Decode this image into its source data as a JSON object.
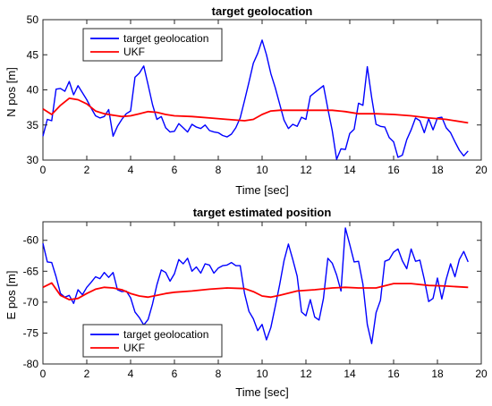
{
  "chart_data": [
    {
      "type": "line",
      "title": "target geolocation",
      "xlabel": "Time [sec]",
      "ylabel": "N pos [m]",
      "xlim": [
        0,
        20
      ],
      "ylim": [
        30,
        50
      ],
      "xticks": [
        "0",
        "2",
        "4",
        "6",
        "8",
        "10",
        "12",
        "14",
        "16",
        "18",
        "20"
      ],
      "yticks": [
        "30",
        "35",
        "40",
        "45",
        "50"
      ],
      "grid": false,
      "legend_position": "top-left",
      "series": [
        {
          "name": "target geolocation",
          "color": "#0000ff",
          "x": [
            0,
            0.2,
            0.4,
            0.6,
            0.8,
            1.0,
            1.2,
            1.4,
            1.6,
            1.8,
            2.0,
            2.2,
            2.4,
            2.6,
            2.8,
            3.0,
            3.2,
            3.4,
            3.6,
            3.8,
            4.0,
            4.2,
            4.4,
            4.6,
            4.8,
            5.0,
            5.2,
            5.4,
            5.6,
            5.8,
            6.0,
            6.2,
            6.4,
            6.6,
            6.8,
            7.0,
            7.2,
            7.4,
            7.6,
            7.8,
            8.0,
            8.2,
            8.4,
            8.6,
            8.8,
            9.0,
            9.2,
            9.4,
            9.6,
            9.8,
            10.0,
            10.2,
            10.4,
            10.6,
            10.8,
            11.0,
            11.2,
            11.4,
            11.6,
            11.8,
            12.0,
            12.2,
            12.4,
            12.6,
            12.8,
            13.0,
            13.2,
            13.4,
            13.6,
            13.8,
            14.0,
            14.2,
            14.4,
            14.6,
            14.8,
            15.0,
            15.2,
            15.4,
            15.6,
            15.8,
            16.0,
            16.2,
            16.4,
            16.6,
            16.8,
            17.0,
            17.2,
            17.4,
            17.6,
            17.8,
            18.0,
            18.2,
            18.4,
            18.6,
            18.8,
            19.0,
            19.2,
            19.4
          ],
          "y": [
            33.4,
            35.8,
            35.6,
            40.1,
            40.2,
            39.8,
            41.2,
            39.3,
            40.6,
            39.6,
            38.6,
            37.4,
            36.3,
            36.0,
            36.2,
            37.2,
            33.4,
            34.8,
            35.8,
            36.6,
            37.0,
            41.8,
            42.4,
            43.4,
            40.7,
            37.9,
            35.8,
            36.2,
            34.6,
            34.0,
            34.1,
            35.2,
            34.6,
            34.0,
            35.1,
            34.7,
            34.5,
            35.0,
            34.2,
            34.0,
            33.9,
            33.5,
            33.3,
            33.7,
            34.6,
            36.0,
            38.5,
            41.1,
            43.8,
            45.2,
            47.1,
            45.0,
            42.3,
            40.3,
            38.0,
            35.7,
            34.5,
            35.1,
            34.8,
            36.1,
            35.8,
            39.1,
            39.6,
            40.1,
            40.6,
            37.3,
            34.2,
            30.1,
            31.6,
            31.5,
            33.8,
            34.4,
            38.1,
            37.8,
            43.3,
            38.9,
            35.1,
            34.8,
            34.7,
            33.2,
            32.6,
            30.4,
            30.7,
            32.9,
            34.3,
            36.0,
            35.6,
            33.9,
            35.9,
            34.3,
            36.0,
            36.1,
            34.6,
            33.9,
            32.6,
            31.4,
            30.6,
            31.3
          ]
        },
        {
          "name": "UKF",
          "color": "#ff0000",
          "x": [
            0,
            0.4,
            0.8,
            1.2,
            1.6,
            2.0,
            2.4,
            2.8,
            3.2,
            3.6,
            4.0,
            4.4,
            4.8,
            5.2,
            5.6,
            6.0,
            6.8,
            7.6,
            8.4,
            9.2,
            9.6,
            10.0,
            10.4,
            10.8,
            11.6,
            12.4,
            13.2,
            13.8,
            14.4,
            15.2,
            16.0,
            16.8,
            17.6,
            18.4,
            19.4
          ],
          "y": [
            37.3,
            36.5,
            37.8,
            38.8,
            38.6,
            38.0,
            37.0,
            36.6,
            36.4,
            36.2,
            36.3,
            36.6,
            36.9,
            36.8,
            36.5,
            36.3,
            36.2,
            36.0,
            35.8,
            35.6,
            35.8,
            36.5,
            37.0,
            37.1,
            37.1,
            37.1,
            37.1,
            36.9,
            36.6,
            36.6,
            36.5,
            36.3,
            36.0,
            35.8,
            35.3
          ]
        }
      ]
    },
    {
      "type": "line",
      "title": "target estimated position",
      "xlabel": "Time [sec]",
      "ylabel": "E pos [m]",
      "xlim": [
        0,
        20
      ],
      "ylim": [
        -80,
        -57
      ],
      "xticks": [
        "0",
        "2",
        "4",
        "6",
        "8",
        "10",
        "12",
        "14",
        "16",
        "18",
        "20"
      ],
      "yticks": [
        "-60",
        "-65",
        "-70",
        "-75",
        "-80"
      ],
      "grid": false,
      "legend_position": "bottom-left",
      "series": [
        {
          "name": "target geolocation",
          "color": "#0000ff",
          "x": [
            0,
            0.2,
            0.4,
            0.6,
            0.8,
            1.0,
            1.2,
            1.4,
            1.6,
            1.8,
            2.0,
            2.2,
            2.4,
            2.6,
            2.8,
            3.0,
            3.2,
            3.4,
            3.6,
            3.8,
            4.0,
            4.2,
            4.4,
            4.6,
            4.8,
            5.0,
            5.2,
            5.4,
            5.6,
            5.8,
            6.0,
            6.2,
            6.4,
            6.6,
            6.8,
            7.0,
            7.2,
            7.4,
            7.6,
            7.8,
            8.0,
            8.2,
            8.4,
            8.6,
            8.8,
            9.0,
            9.2,
            9.4,
            9.6,
            9.8,
            10.0,
            10.2,
            10.4,
            10.6,
            10.8,
            11.0,
            11.2,
            11.4,
            11.6,
            11.8,
            12.0,
            12.2,
            12.4,
            12.6,
            12.8,
            13.0,
            13.2,
            13.4,
            13.6,
            13.8,
            14.0,
            14.2,
            14.4,
            14.6,
            14.8,
            15.0,
            15.2,
            15.4,
            15.6,
            15.8,
            16.0,
            16.2,
            16.4,
            16.6,
            16.8,
            17.0,
            17.2,
            17.4,
            17.6,
            17.8,
            18.0,
            18.2,
            18.4,
            18.6,
            18.8,
            19.0,
            19.2,
            19.4
          ],
          "y": [
            -60.5,
            -63.5,
            -63.6,
            -65.9,
            -68.6,
            -69.2,
            -68.9,
            -70.2,
            -68.0,
            -68.8,
            -67.6,
            -66.8,
            -65.9,
            -66.2,
            -65.2,
            -66.0,
            -65.2,
            -68.0,
            -68.3,
            -68.2,
            -69.3,
            -71.6,
            -72.5,
            -73.7,
            -72.8,
            -70.3,
            -67.2,
            -64.8,
            -65.2,
            -66.6,
            -65.4,
            -63.1,
            -63.8,
            -62.9,
            -65.0,
            -64.3,
            -65.3,
            -63.8,
            -64.0,
            -65.3,
            -64.5,
            -64.1,
            -64.0,
            -63.6,
            -64.1,
            -64.1,
            -68.6,
            -71.5,
            -72.7,
            -74.6,
            -73.6,
            -76.1,
            -74.1,
            -70.7,
            -67.2,
            -63.3,
            -60.6,
            -63.1,
            -65.8,
            -71.6,
            -72.2,
            -69.6,
            -72.4,
            -72.9,
            -69.4,
            -62.9,
            -63.7,
            -65.6,
            -68.2,
            -58.0,
            -60.7,
            -63.5,
            -63.4,
            -67.1,
            -73.6,
            -76.7,
            -71.7,
            -69.7,
            -63.4,
            -63.1,
            -61.9,
            -61.4,
            -63.3,
            -64.6,
            -61.4,
            -63.4,
            -63.2,
            -66.3,
            -69.9,
            -69.4,
            -66.1,
            -69.5,
            -66.3,
            -63.8,
            -65.9,
            -63.1,
            -61.8,
            -63.5
          ]
        },
        {
          "name": "UKF",
          "color": "#ff0000",
          "x": [
            0,
            0.4,
            0.8,
            1.2,
            1.6,
            2.0,
            2.4,
            2.8,
            3.2,
            3.6,
            4.0,
            4.4,
            4.8,
            5.2,
            5.6,
            6.0,
            6.8,
            7.6,
            8.4,
            9.2,
            9.6,
            10.0,
            10.4,
            10.8,
            11.6,
            12.4,
            13.2,
            13.8,
            14.4,
            15.2,
            16.0,
            16.8,
            17.6,
            18.4,
            19.4
          ],
          "y": [
            -67.6,
            -66.9,
            -68.9,
            -69.6,
            -69.4,
            -68.6,
            -67.9,
            -67.6,
            -67.7,
            -68.0,
            -68.6,
            -69.0,
            -69.2,
            -68.9,
            -68.6,
            -68.4,
            -68.2,
            -67.9,
            -67.7,
            -67.8,
            -68.3,
            -69.0,
            -69.2,
            -68.9,
            -68.2,
            -68.0,
            -67.7,
            -67.6,
            -67.7,
            -67.7,
            -67.0,
            -67.0,
            -67.3,
            -67.4,
            -67.6
          ]
        }
      ]
    }
  ]
}
